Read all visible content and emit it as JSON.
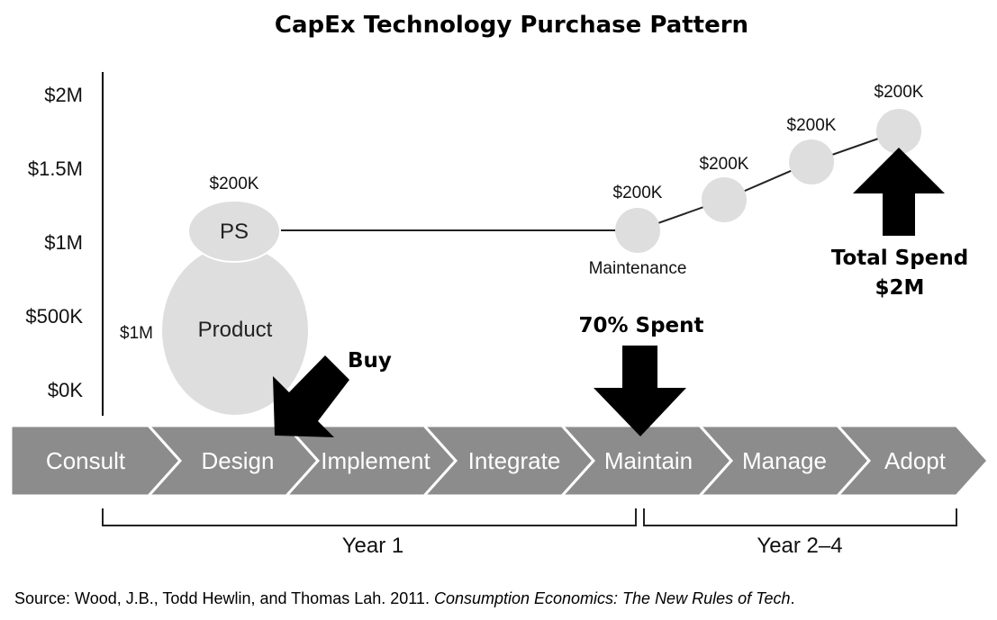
{
  "title": "CapEx Technology Purchase Pattern",
  "y_axis_ticks": [
    "$2M",
    "$1.5M",
    "$1M",
    "$500K",
    "$0K"
  ],
  "product": {
    "label": "Product",
    "value_label": "$1M"
  },
  "ps": {
    "label": "PS",
    "value_label": "$200K"
  },
  "maintenance": {
    "label": "Maintenance",
    "points": [
      {
        "value_label": "$200K"
      },
      {
        "value_label": "$200K"
      },
      {
        "value_label": "$200K"
      },
      {
        "value_label": "$200K"
      }
    ]
  },
  "callouts": {
    "buy": "Buy",
    "spent_70": "70% Spent",
    "total_line1": "Total Spend",
    "total_line2": "$2M"
  },
  "phases": [
    "Consult",
    "Design",
    "Implement",
    "Integrate",
    "Maintain",
    "Manage",
    "Adopt"
  ],
  "colors": {
    "bubble": "#dedede",
    "phase_bar": "#8c8c8c",
    "arrow": "#000000"
  },
  "years": {
    "year1": "Year 1",
    "year2": "Year 2–4"
  },
  "source": {
    "prefix": "Source: Wood, J.B., Todd Hewlin, and Thomas Lah. 2011. ",
    "book": "Consumption Economics: The New Rules of Tech",
    "suffix": "."
  }
}
